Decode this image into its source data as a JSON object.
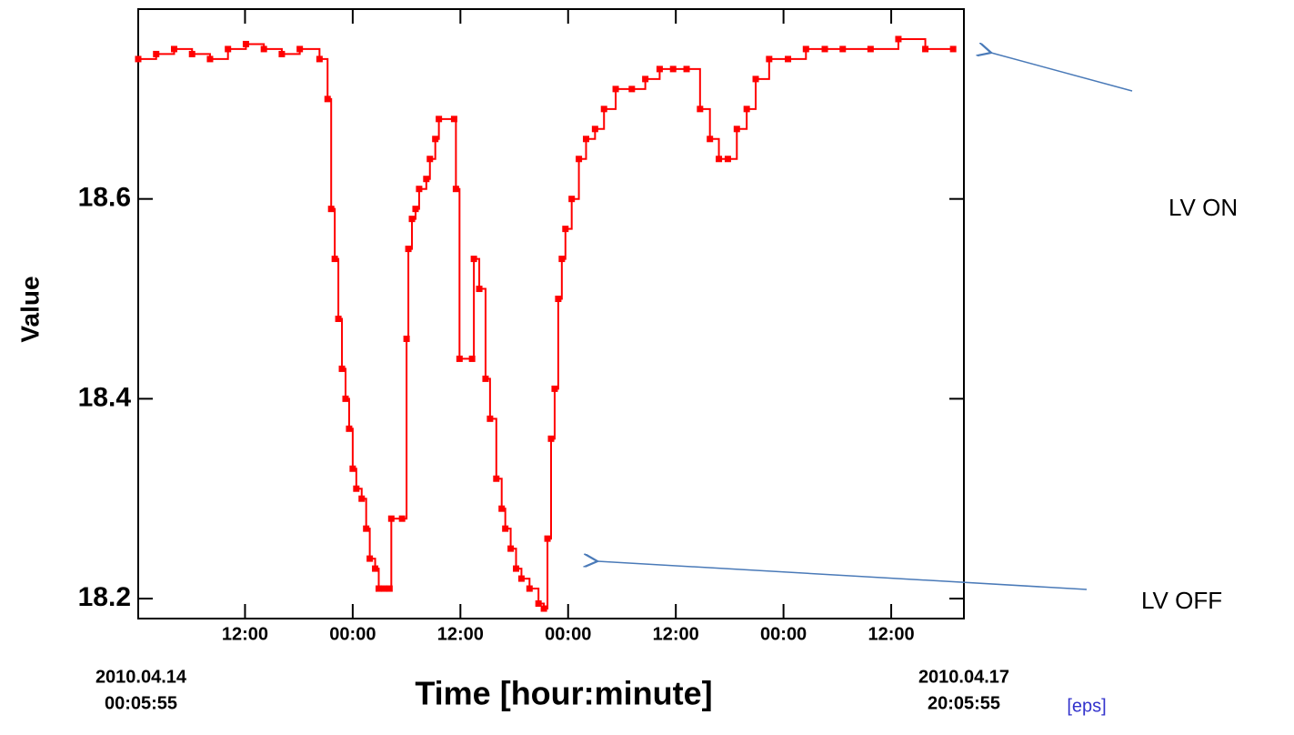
{
  "chart_data": {
    "type": "line",
    "step": true,
    "marker": "square",
    "color": "#ff0000",
    "ylabel": "Value",
    "xlabel": "Time  [hour:minute]",
    "start_label": [
      "2010.04.14",
      "00:05:55"
    ],
    "end_label": [
      "2010.04.17",
      "20:05:55"
    ],
    "link": "[eps]",
    "annotations": [
      {
        "text": "LV ON"
      },
      {
        "text": "LV OFF"
      }
    ],
    "xlim": [
      0,
      92
    ],
    "ylim": [
      18.18,
      18.79
    ],
    "xticks": [
      {
        "value": 11.9,
        "label": "12:00"
      },
      {
        "value": 23.9,
        "label": "00:00"
      },
      {
        "value": 35.9,
        "label": "12:00"
      },
      {
        "value": 47.9,
        "label": "00:00"
      },
      {
        "value": 59.9,
        "label": "12:00"
      },
      {
        "value": 71.9,
        "label": "00:00"
      },
      {
        "value": 83.9,
        "label": "12:00"
      }
    ],
    "yticks": [
      18.2,
      18.4,
      18.6
    ],
    "x": [
      0,
      2,
      4,
      6,
      8,
      10,
      12,
      14,
      16,
      18,
      20.2,
      21.1,
      21.5,
      21.9,
      22.3,
      22.7,
      23.1,
      23.5,
      23.9,
      24.3,
      24.9,
      25.4,
      25.8,
      26.4,
      26.8,
      27.4,
      28.0,
      28.2,
      29.4,
      29.9,
      30.1,
      30.5,
      30.9,
      31.3,
      32.1,
      32.5,
      33.1,
      33.5,
      35.2,
      35.4,
      35.8,
      37.2,
      37.4,
      38.0,
      38.7,
      39.2,
      39.9,
      40.5,
      40.9,
      41.5,
      42.1,
      42.7,
      43.6,
      44.6,
      45.2,
      45.6,
      46.0,
      46.4,
      46.8,
      47.2,
      47.6,
      48.3,
      49.1,
      49.9,
      50.9,
      51.9,
      53.2,
      55.0,
      56.5,
      58.1,
      59.6,
      61.1,
      62.6,
      63.7,
      64.7,
      65.7,
      66.7,
      67.8,
      68.8,
      70.3,
      72.4,
      74.4,
      76.5,
      78.5,
      81.6,
      84.7,
      87.7,
      90.8
    ],
    "values": [
      18.74,
      18.745,
      18.75,
      18.745,
      18.74,
      18.75,
      18.755,
      18.75,
      18.745,
      18.75,
      18.74,
      18.7,
      18.59,
      18.54,
      18.48,
      18.43,
      18.4,
      18.37,
      18.33,
      18.31,
      18.3,
      18.27,
      18.24,
      18.23,
      18.21,
      18.21,
      18.21,
      18.28,
      18.28,
      18.46,
      18.55,
      18.58,
      18.59,
      18.61,
      18.62,
      18.64,
      18.66,
      18.68,
      18.68,
      18.61,
      18.44,
      18.44,
      18.54,
      18.51,
      18.42,
      18.38,
      18.32,
      18.29,
      18.27,
      18.25,
      18.23,
      18.22,
      18.21,
      18.195,
      18.19,
      18.26,
      18.36,
      18.41,
      18.5,
      18.54,
      18.57,
      18.6,
      18.64,
      18.66,
      18.67,
      18.69,
      18.71,
      18.71,
      18.72,
      18.73,
      18.73,
      18.73,
      18.69,
      18.66,
      18.64,
      18.64,
      18.67,
      18.69,
      18.72,
      18.74,
      18.74,
      18.75,
      18.75,
      18.75,
      18.75,
      18.76,
      18.75,
      18.75
    ]
  }
}
